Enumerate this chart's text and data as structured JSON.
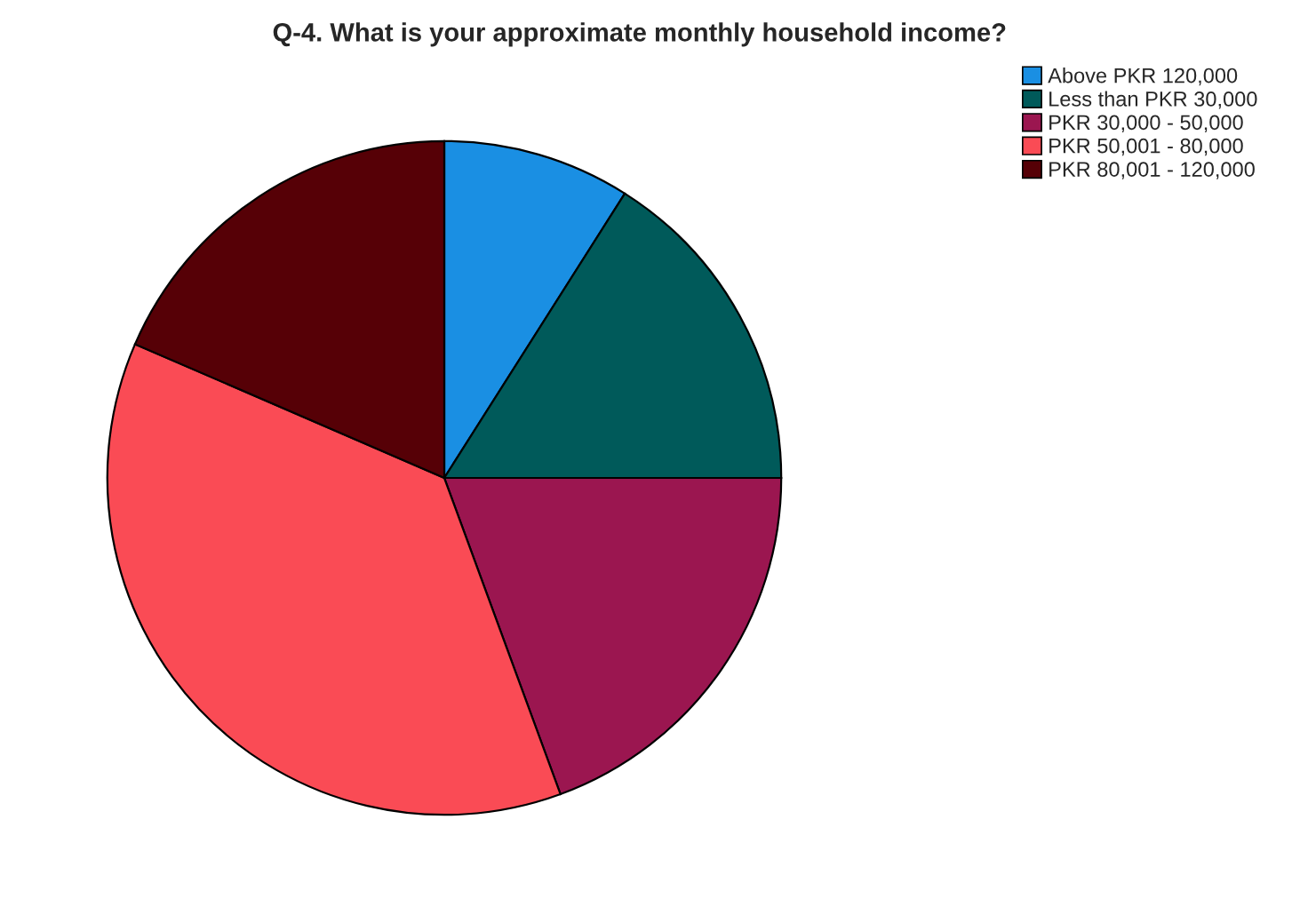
{
  "chart_data": {
    "type": "pie",
    "title": "Q-4. What is your approximate monthly household income?",
    "categories": [
      "Above PKR 120,000",
      "Less than PKR 30,000",
      "PKR 30,000 - 50,000",
      "PKR 50,001 - 80,000",
      "PKR 80,001 - 120,000"
    ],
    "values": [
      9,
      16,
      19.4,
      37.1,
      18.5
    ],
    "colors": [
      "#1a8fe3",
      "#005a5a",
      "#9b1650",
      "#fa4b55",
      "#560006"
    ],
    "legend": "top right"
  }
}
